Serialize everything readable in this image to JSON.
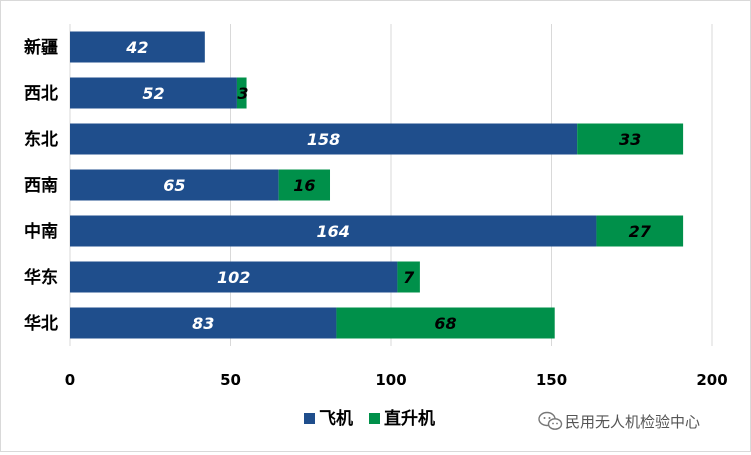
{
  "chart_data": {
    "type": "bar",
    "orientation": "horizontal",
    "stacked": true,
    "categories": [
      "新疆",
      "西北",
      "东北",
      "西南",
      "中南",
      "华东",
      "华北"
    ],
    "series": [
      {
        "name": "飞机",
        "color": "#1f4e8c",
        "label_color": "#ffffff",
        "values": [
          42,
          52,
          158,
          65,
          164,
          102,
          83
        ]
      },
      {
        "name": "直升机",
        "color": "#00904a",
        "label_color": "#000000",
        "values": [
          null,
          3,
          33,
          16,
          27,
          7,
          68
        ]
      }
    ],
    "xlim": [
      0,
      200
    ],
    "xticks": [
      0,
      50,
      100,
      150,
      200
    ],
    "tick_labels": [
      "0",
      "50",
      "100",
      "150",
      "200"
    ],
    "grid": true,
    "legend": "bottom"
  },
  "watermark": {
    "text": "民用无人机检验中心",
    "icon": "wechat-icon"
  }
}
